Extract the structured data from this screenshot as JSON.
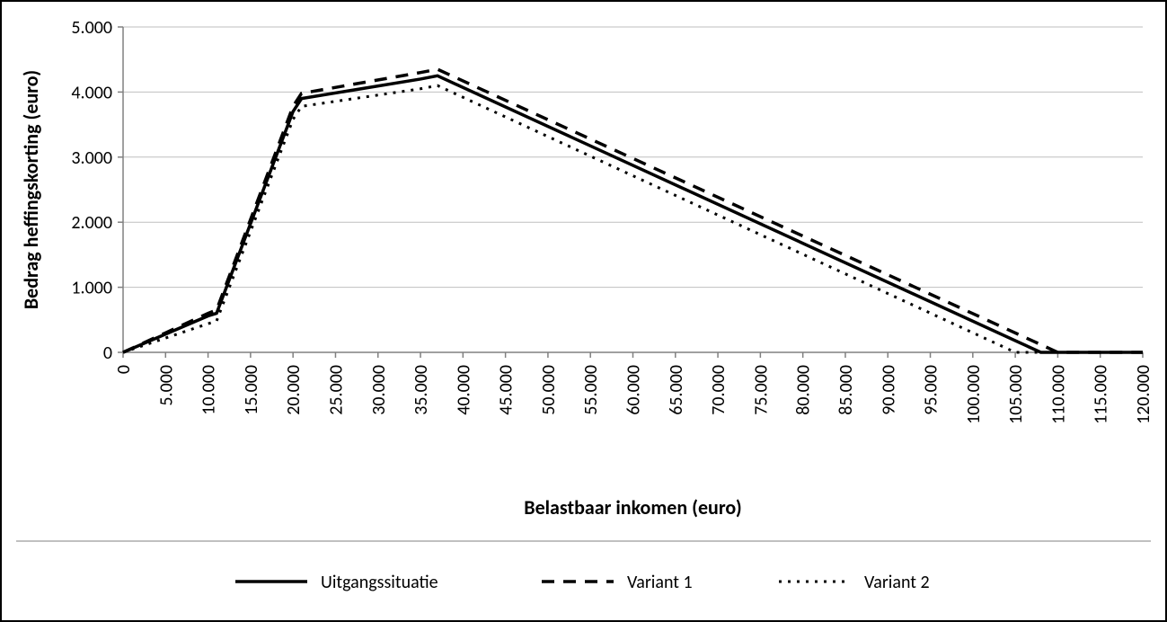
{
  "chart": {
    "type": "line",
    "background_color": "#ffffff",
    "border_color": "#000000",
    "grid_color": "#bfbfbf",
    "axis_color": "#808080",
    "series_color": "#000000",
    "line_width_solid": 3.5,
    "line_width_dash": 3.5,
    "line_width_dot": 3.0,
    "dash_pattern": "14 10",
    "dot_pattern": "3 7",
    "x_axis": {
      "label": "Belastbaar inkomen (euro)",
      "label_fontsize": 22,
      "tick_fontsize": 20,
      "min": 0,
      "max": 120000,
      "tick_step": 5000,
      "ticks": [
        0,
        5000,
        10000,
        15000,
        20000,
        25000,
        30000,
        35000,
        40000,
        45000,
        50000,
        55000,
        60000,
        65000,
        70000,
        75000,
        80000,
        85000,
        90000,
        95000,
        100000,
        105000,
        110000,
        115000,
        120000
      ],
      "tick_labels": [
        "0",
        "5.000",
        "10.000",
        "15.000",
        "20.000",
        "25.000",
        "30.000",
        "35.000",
        "40.000",
        "45.000",
        "50.000",
        "55.000",
        "60.000",
        "65.000",
        "70.000",
        "75.000",
        "80.000",
        "85.000",
        "90.000",
        "95.000",
        "100.000",
        "105.000",
        "110.000",
        "115.000",
        "120.000"
      ]
    },
    "y_axis": {
      "label": "Bedrag heffingskorting (euro)",
      "label_fontsize": 22,
      "tick_fontsize": 20,
      "min": 0,
      "max": 5000,
      "tick_step": 1000,
      "ticks": [
        0,
        1000,
        2000,
        3000,
        4000,
        5000
      ],
      "tick_labels": [
        "0",
        "1.000",
        "2.000",
        "3.000",
        "4.000",
        "5.000"
      ]
    },
    "series": [
      {
        "name": "Uitgangssituatie",
        "style": "solid",
        "data": [
          [
            0,
            0
          ],
          [
            5000,
            280
          ],
          [
            10000,
            560
          ],
          [
            11000,
            600
          ],
          [
            20000,
            3700
          ],
          [
            21000,
            3900
          ],
          [
            35000,
            4200
          ],
          [
            37000,
            4250
          ],
          [
            108000,
            0
          ],
          [
            120000,
            0
          ]
        ]
      },
      {
        "name": "Variant 1",
        "style": "dash",
        "data": [
          [
            0,
            0
          ],
          [
            5000,
            300
          ],
          [
            10000,
            600
          ],
          [
            11000,
            650
          ],
          [
            20000,
            3780
          ],
          [
            21000,
            3980
          ],
          [
            35000,
            4300
          ],
          [
            37000,
            4350
          ],
          [
            110000,
            0
          ],
          [
            120000,
            0
          ]
        ]
      },
      {
        "name": "Variant 2",
        "style": "dot",
        "data": [
          [
            0,
            0
          ],
          [
            5000,
            220
          ],
          [
            10000,
            440
          ],
          [
            11000,
            480
          ],
          [
            20000,
            3580
          ],
          [
            21000,
            3780
          ],
          [
            35000,
            4050
          ],
          [
            37000,
            4100
          ],
          [
            105000,
            0
          ],
          [
            120000,
            0
          ]
        ]
      }
    ],
    "legend": {
      "fontsize": 20,
      "items": [
        "Uitgangssituatie",
        "Variant 1",
        "Variant 2"
      ]
    }
  }
}
